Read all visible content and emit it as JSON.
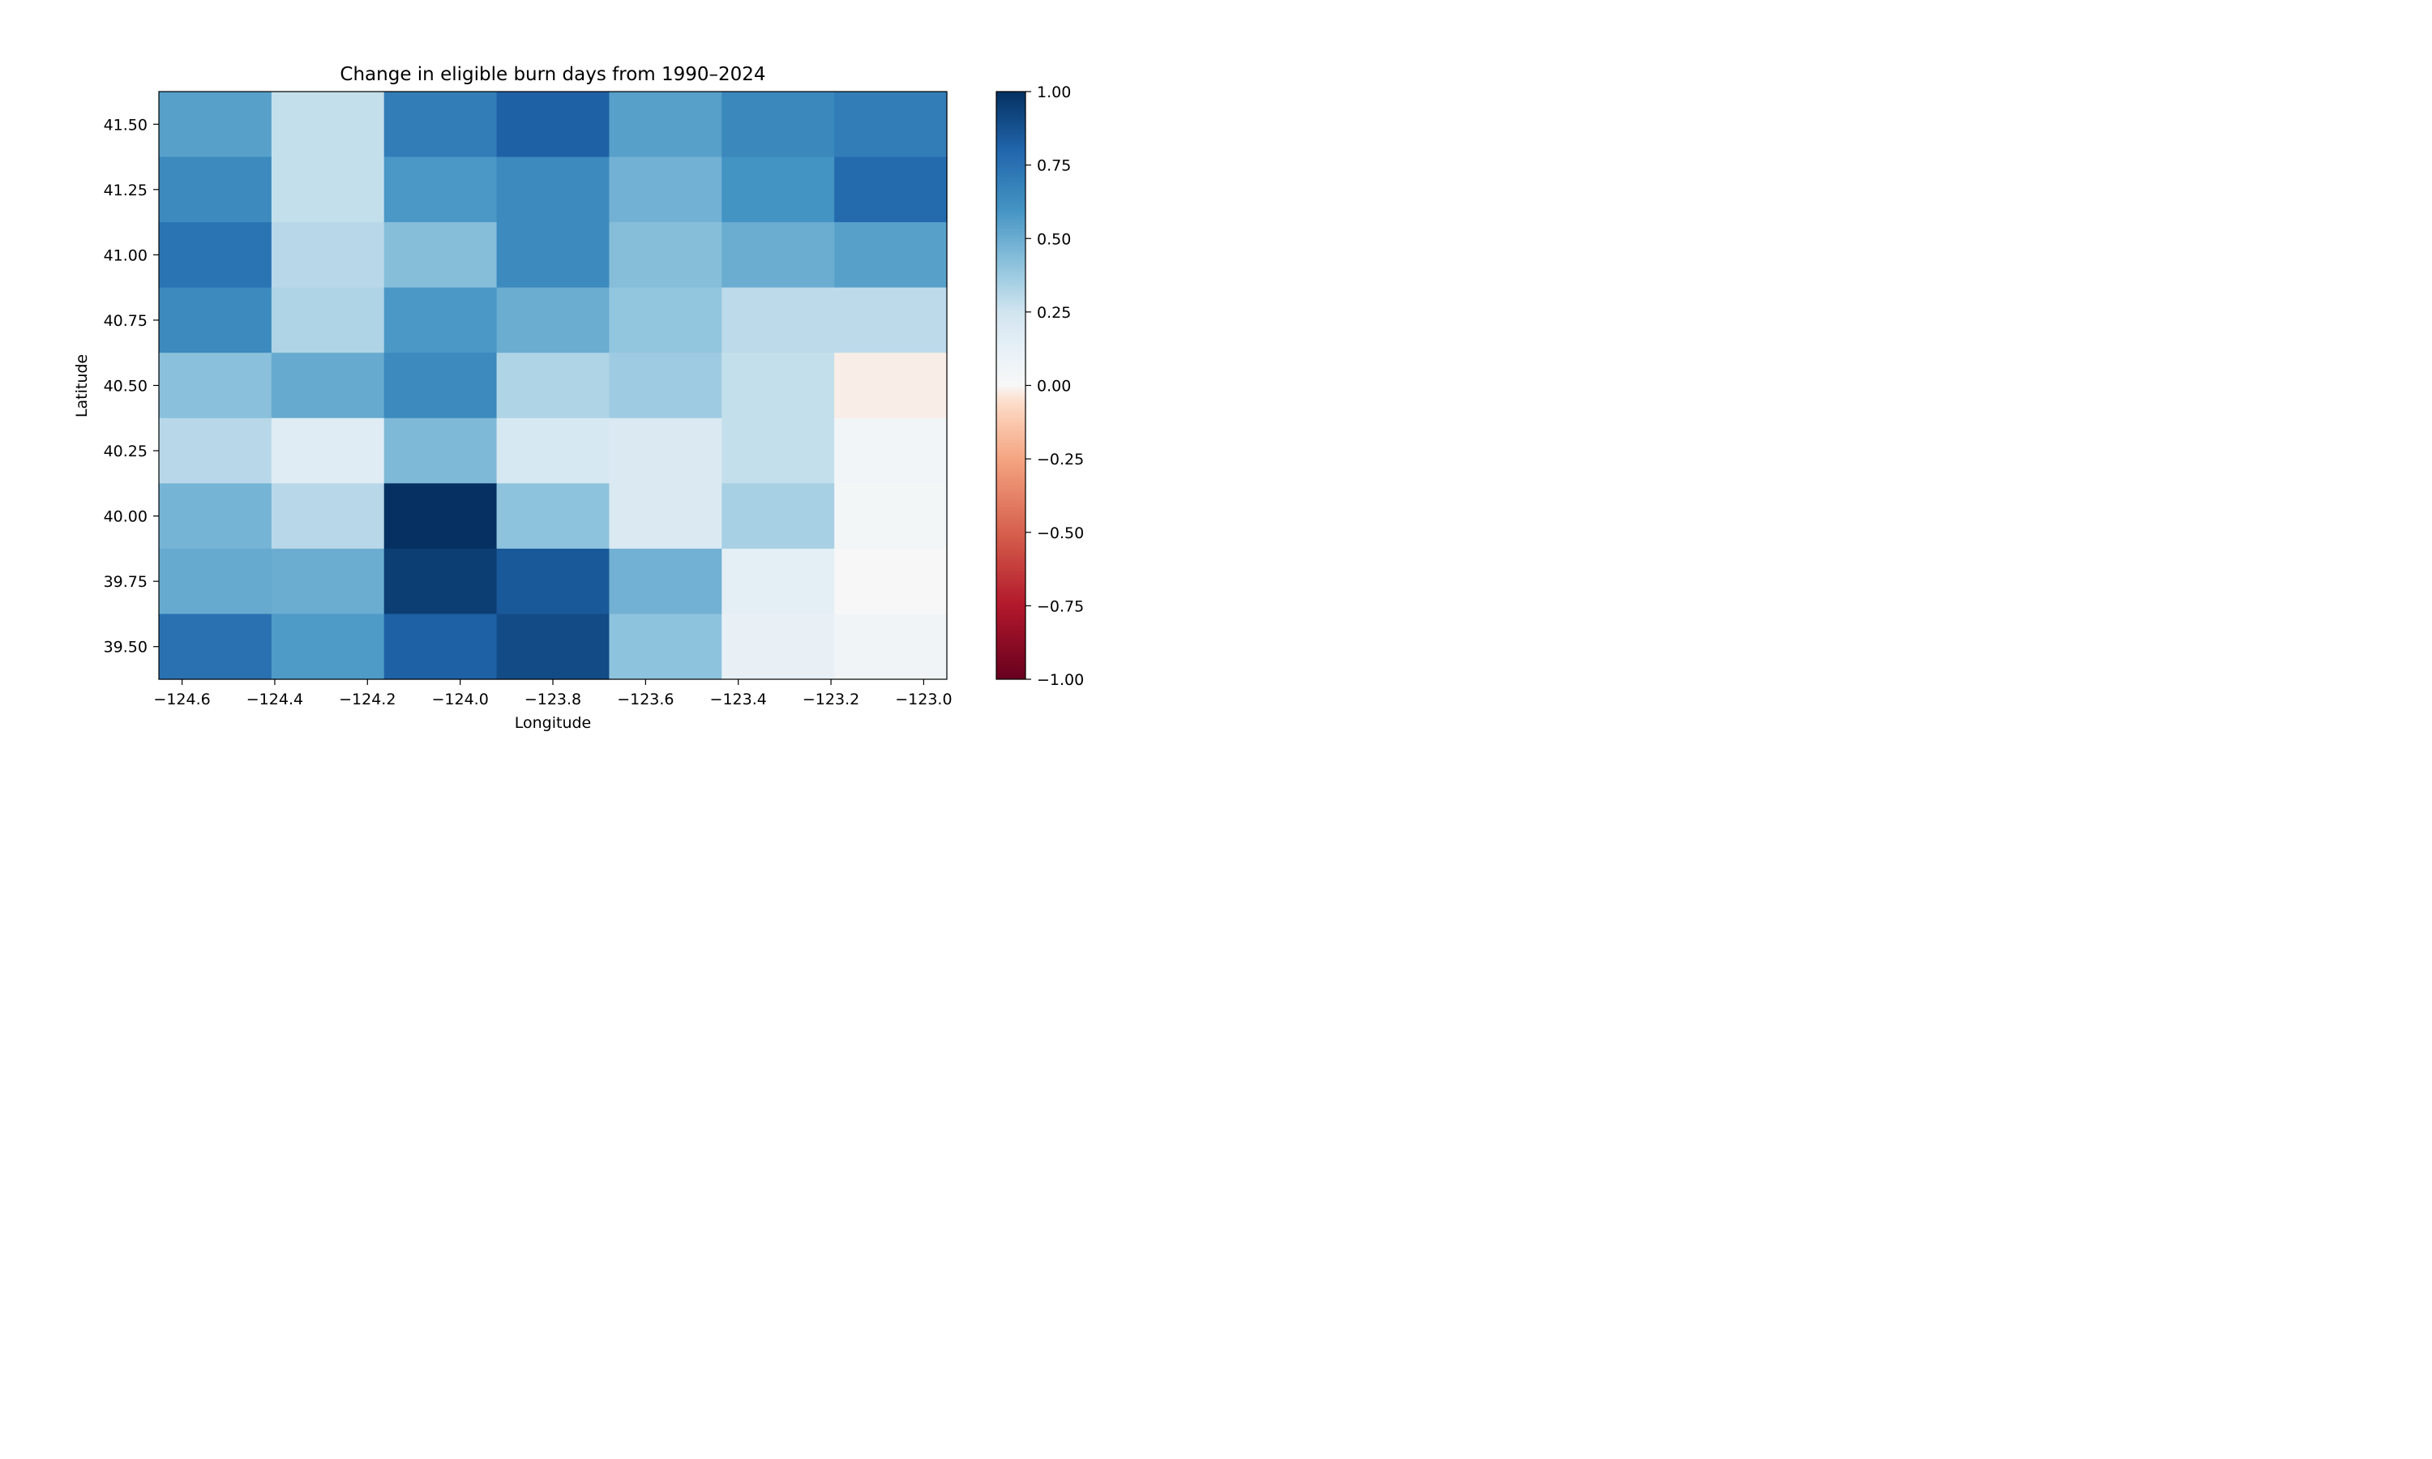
{
  "chart_data": {
    "type": "heatmap",
    "title": "Change in eligible burn days from 1990–2024",
    "xlabel": "Longitude",
    "ylabel": "Latitude",
    "colormap": "RdBu",
    "x_tick_labels": [
      "−124.6",
      "−124.4",
      "−124.2",
      "−124.0",
      "−123.8",
      "−123.6",
      "−123.4",
      "−123.2",
      "−123.0"
    ],
    "x_tick_values": [
      -124.6,
      -124.4,
      -124.2,
      -124.0,
      -123.8,
      -123.6,
      -123.4,
      -123.2,
      -123.0
    ],
    "y_tick_labels": [
      "41.50",
      "41.25",
      "41.00",
      "40.75",
      "40.50",
      "40.25",
      "40.00",
      "39.75",
      "39.50"
    ],
    "y_tick_values": [
      41.5,
      41.25,
      41.0,
      40.75,
      40.5,
      40.25,
      40.0,
      39.75,
      39.5
    ],
    "xlim": [
      -124.65,
      -122.95
    ],
    "ylim": [
      39.375,
      41.625
    ],
    "longitudes": [
      -124.5,
      -124.25,
      -124.0,
      -123.75,
      -123.5,
      -123.25,
      -123.0
    ],
    "latitudes": [
      41.5,
      41.25,
      41.0,
      40.75,
      40.5,
      40.25,
      40.0,
      39.75,
      39.5
    ],
    "values": [
      [
        0.55,
        0.28,
        0.7,
        0.82,
        0.55,
        0.65,
        0.7
      ],
      [
        0.64,
        0.28,
        0.58,
        0.64,
        0.48,
        0.6,
        0.78
      ],
      [
        0.74,
        0.31,
        0.43,
        0.64,
        0.43,
        0.5,
        0.55
      ],
      [
        0.64,
        0.33,
        0.58,
        0.5,
        0.4,
        0.3,
        0.3
      ],
      [
        0.42,
        0.51,
        0.64,
        0.33,
        0.37,
        0.28,
        -0.02
      ],
      [
        0.31,
        0.17,
        0.45,
        0.22,
        0.2,
        0.28,
        0.05
      ],
      [
        0.47,
        0.31,
        1.0,
        0.41,
        0.2,
        0.35,
        0.03
      ],
      [
        0.51,
        0.5,
        0.95,
        0.85,
        0.48,
        0.14,
        0.0
      ],
      [
        0.75,
        0.57,
        0.82,
        0.9,
        0.41,
        0.12,
        0.06
      ]
    ],
    "colorbar": {
      "range": [
        -1.0,
        1.0
      ],
      "tick_values": [
        1.0,
        0.75,
        0.5,
        0.25,
        0.0,
        -0.25,
        -0.5,
        -0.75,
        -1.0
      ],
      "tick_labels": [
        "1.00",
        "0.75",
        "0.50",
        "0.25",
        "0.00",
        "−0.25",
        "−0.50",
        "−0.75",
        "−1.00"
      ]
    },
    "grid": false,
    "legend": "none"
  }
}
